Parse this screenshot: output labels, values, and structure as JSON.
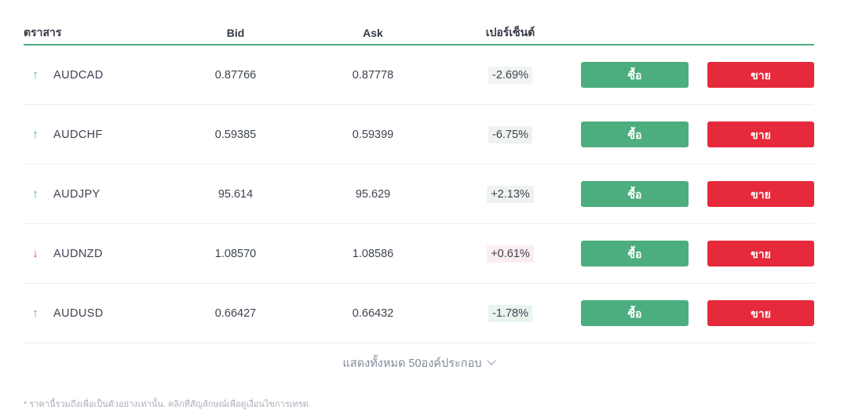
{
  "colors": {
    "accent_green": "#4cad7e",
    "accent_red": "#e62a3b",
    "down_arrow_red": "#e03e4e",
    "header_underline_green": "#4cad7e",
    "row_separator": "#ededee",
    "text_dark": "#3c4350",
    "muted_text": "#7e8a99",
    "footnote_text": "#a9aeb7"
  },
  "table": {
    "headers": {
      "instrument": "ตราสาร",
      "bid": "Bid",
      "ask": "Ask",
      "percent": "เปอร์เซ็นต์"
    },
    "buy_label": "ซื้อ",
    "sell_label": "ขาย",
    "rows": [
      {
        "symbol": "AUDCAD",
        "direction": "up",
        "bid": "0.87766",
        "ask": "0.87778",
        "percent": "-2.69%",
        "percent_bg": "#f1f5f2"
      },
      {
        "symbol": "AUDCHF",
        "direction": "up",
        "bid": "0.59385",
        "ask": "0.59399",
        "percent": "-6.75%",
        "percent_bg": "#eff3f0"
      },
      {
        "symbol": "AUDJPY",
        "direction": "up",
        "bid": "95.614",
        "ask": "95.629",
        "percent": "+2.13%",
        "percent_bg": "#eff3f0"
      },
      {
        "symbol": "AUDNZD",
        "direction": "down",
        "bid": "1.08570",
        "ask": "1.08586",
        "percent": "+0.61%",
        "percent_bg": "#fbedef"
      },
      {
        "symbol": "AUDUSD",
        "direction": "up",
        "bid": "0.66427",
        "ask": "0.66432",
        "percent": "-1.78%",
        "percent_bg": "#e9f4ee"
      }
    ],
    "arrow_glyphs": {
      "up": "↑",
      "down": "↓"
    }
  },
  "footer": {
    "show_all_label": "แสดงทั้งหมด 50องค์ประกอบ",
    "footnote": "* ราคานี้รวมถึงเพื่อเป็นตัวอย่างเท่านั้น. คลิกที่สัญลักษณ์เพื่อดูเงื่อนไขการเทรด."
  }
}
